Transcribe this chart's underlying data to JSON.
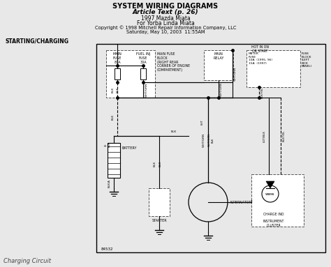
{
  "title_line1": "SYSTEM WIRING DIAGRAMS",
  "title_line2": "Article Text (p. 26)",
  "title_line3": "1997 Mazda Miata",
  "title_line4": "For Yorba Linda Miata",
  "title_line5": "Copyright © 1998 Mitchell Repair Information Company, LLC",
  "title_line6": "Saturday, May 10, 2003  11:55AM",
  "section_label": "STARTING/CHARGING",
  "footer_label": "Charging Circuit",
  "bg_color": "#e8e8e8",
  "diagram_bg": "#ffffff",
  "diagram_border": "#000000",
  "text_color": "#000000",
  "wire_color": "#000000",
  "fig_width": 4.74,
  "fig_height": 3.83,
  "dpi": 100
}
